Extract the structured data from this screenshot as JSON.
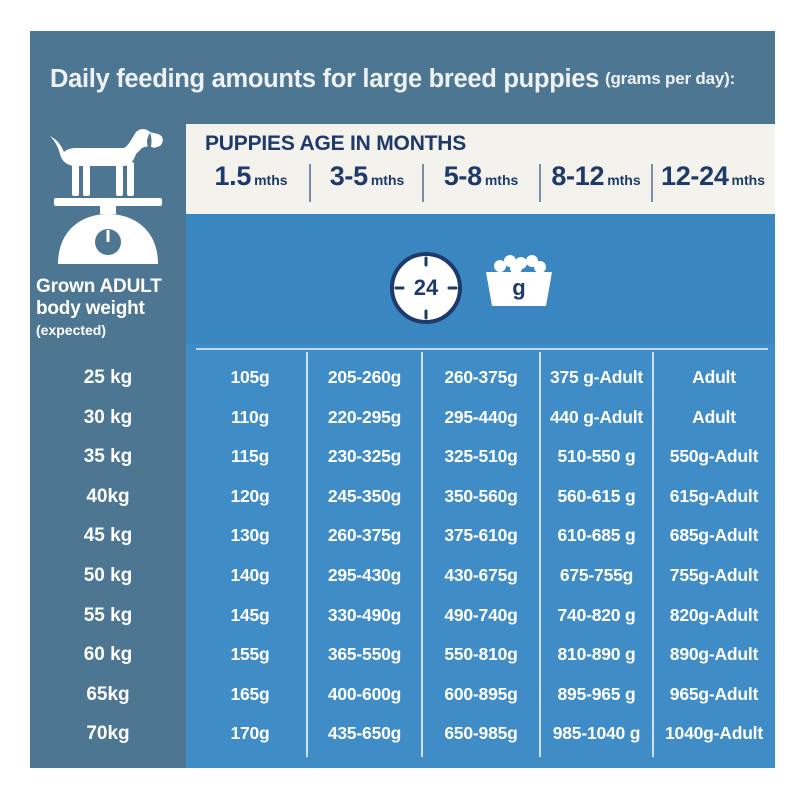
{
  "title": {
    "main": "Daily feeding amounts for large breed puppies",
    "sub": "(grams per day):"
  },
  "header": {
    "title": "PUPPIES AGE IN MONTHS",
    "ages": [
      {
        "num": "1.5",
        "unit": "mths"
      },
      {
        "num": "3-5",
        "unit": "mths"
      },
      {
        "num": "5-8",
        "unit": "mths"
      },
      {
        "num": "8-12",
        "unit": "mths"
      },
      {
        "num": "12-24",
        "unit": "mths"
      }
    ]
  },
  "icons": {
    "clock_label": "24",
    "bowl_label": "g"
  },
  "left": {
    "label_line1": "Grown ADULT",
    "label_line2": "body weight",
    "label_line3": "(expected)"
  },
  "colors": {
    "frame": "#4d7693",
    "panel": "#3f8cc6",
    "header_bg": "#f4f2ec",
    "header_text": "#1e3a6a",
    "text": "#ffffff"
  },
  "rows": [
    {
      "weight": "25 kg",
      "values": [
        "105g",
        "205-260g",
        "260-375g",
        "375 g-Adult",
        "Adult"
      ]
    },
    {
      "weight": "30 kg",
      "values": [
        "110g",
        "220-295g",
        "295-440g",
        "440 g-Adult",
        "Adult"
      ]
    },
    {
      "weight": "35 kg",
      "values": [
        "115g",
        "230-325g",
        "325-510g",
        "510-550 g",
        "550g-Adult"
      ]
    },
    {
      "weight": "40kg",
      "values": [
        "120g",
        "245-350g",
        "350-560g",
        "560-615 g",
        "615g-Adult"
      ]
    },
    {
      "weight": "45 kg",
      "values": [
        "130g",
        "260-375g",
        "375-610g",
        "610-685 g",
        "685g-Adult"
      ]
    },
    {
      "weight": "50 kg",
      "values": [
        "140g",
        "295-430g",
        "430-675g",
        "675-755g",
        "755g-Adult"
      ]
    },
    {
      "weight": "55 kg",
      "values": [
        "145g",
        "330-490g",
        "490-740g",
        "740-820 g",
        "820g-Adult"
      ]
    },
    {
      "weight": "60 kg",
      "values": [
        "155g",
        "365-550g",
        "550-810g",
        "810-890 g",
        "890g-Adult"
      ]
    },
    {
      "weight": "65kg",
      "values": [
        "165g",
        "400-600g",
        "600-895g",
        "895-965 g",
        "965g-Adult"
      ]
    },
    {
      "weight": "70kg",
      "values": [
        "170g",
        "435-650g",
        "650-985g",
        "985-1040 g",
        "1040g-Adult"
      ]
    }
  ]
}
